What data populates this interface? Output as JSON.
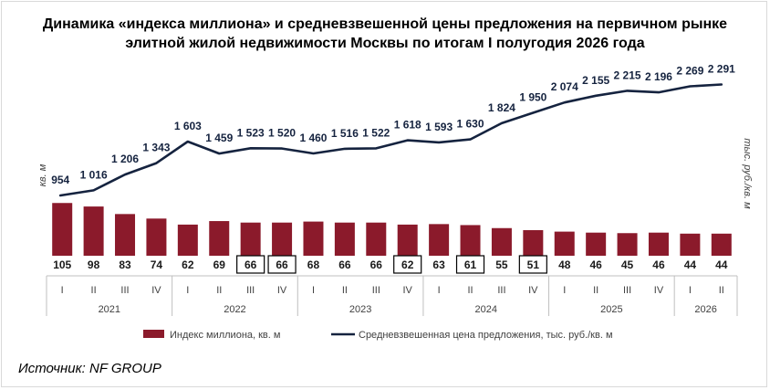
{
  "title_lines": [
    "Динамика «индекса миллиона» и средневзвешенной цены предложения на первичном рынке",
    "элитной жилой недвижимости Москвы по итогам I полугодия 2026 года"
  ],
  "source": "Источник: NF GROUP",
  "colors": {
    "bar": "#8b1a2b",
    "line": "#15233f",
    "axis": "#bfbfbf",
    "text": "#404040"
  },
  "chart_data": {
    "type": "bar+line",
    "x_periods": [
      "I",
      "II",
      "III",
      "IV",
      "I",
      "II",
      "III",
      "IV",
      "I",
      "II",
      "III",
      "IV",
      "I",
      "II",
      "III",
      "IV",
      "I",
      "II",
      "III",
      "IV",
      "I",
      "II"
    ],
    "x_groups": [
      {
        "label": "2021",
        "count": 4
      },
      {
        "label": "2022",
        "count": 4
      },
      {
        "label": "2023",
        "count": 4
      },
      {
        "label": "2024",
        "count": 4
      },
      {
        "label": "2025",
        "count": 4
      },
      {
        "label": "2026",
        "count": 2
      }
    ],
    "y_left_label": "кв. м",
    "y_right_label": "тыс. руб./кв. м",
    "series": [
      {
        "name": "Индекс миллиона, кв. м",
        "type": "bar",
        "values": [
          105,
          98,
          83,
          74,
          62,
          69,
          66,
          66,
          68,
          66,
          66,
          62,
          63,
          61,
          55,
          51,
          48,
          46,
          45,
          46,
          44,
          44
        ],
        "labels": [
          "105",
          "98",
          "83",
          "74",
          "62",
          "69",
          "66",
          "66",
          "68",
          "66",
          "66",
          "62",
          "63",
          "61",
          "55",
          "51",
          "48",
          "46",
          "45",
          "46",
          "44",
          "44"
        ],
        "boxed": [
          false,
          false,
          false,
          false,
          false,
          false,
          true,
          true,
          false,
          false,
          false,
          true,
          false,
          true,
          false,
          true,
          false,
          false,
          false,
          false,
          false,
          false
        ]
      },
      {
        "name": "Средневзвешенная цена предложения, тыс. руб./кв. м",
        "type": "line",
        "values": [
          954,
          1016,
          1206,
          1343,
          1603,
          1459,
          1523,
          1520,
          1460,
          1516,
          1522,
          1618,
          1593,
          1630,
          1824,
          1950,
          2074,
          2155,
          2215,
          2196,
          2269,
          2291
        ],
        "labels": [
          "954",
          "1 016",
          "1 206",
          "1 343",
          "1 603",
          "1 459",
          "1 523",
          "1 520",
          "1 460",
          "1 516",
          "1 522",
          "1 618",
          "1 593",
          "1 630",
          "1 824",
          "1 950",
          "2 074",
          "2 155",
          "2 215",
          "2 196",
          "2 269",
          "2 291"
        ]
      }
    ],
    "legend_position": "bottom",
    "grid": false
  }
}
